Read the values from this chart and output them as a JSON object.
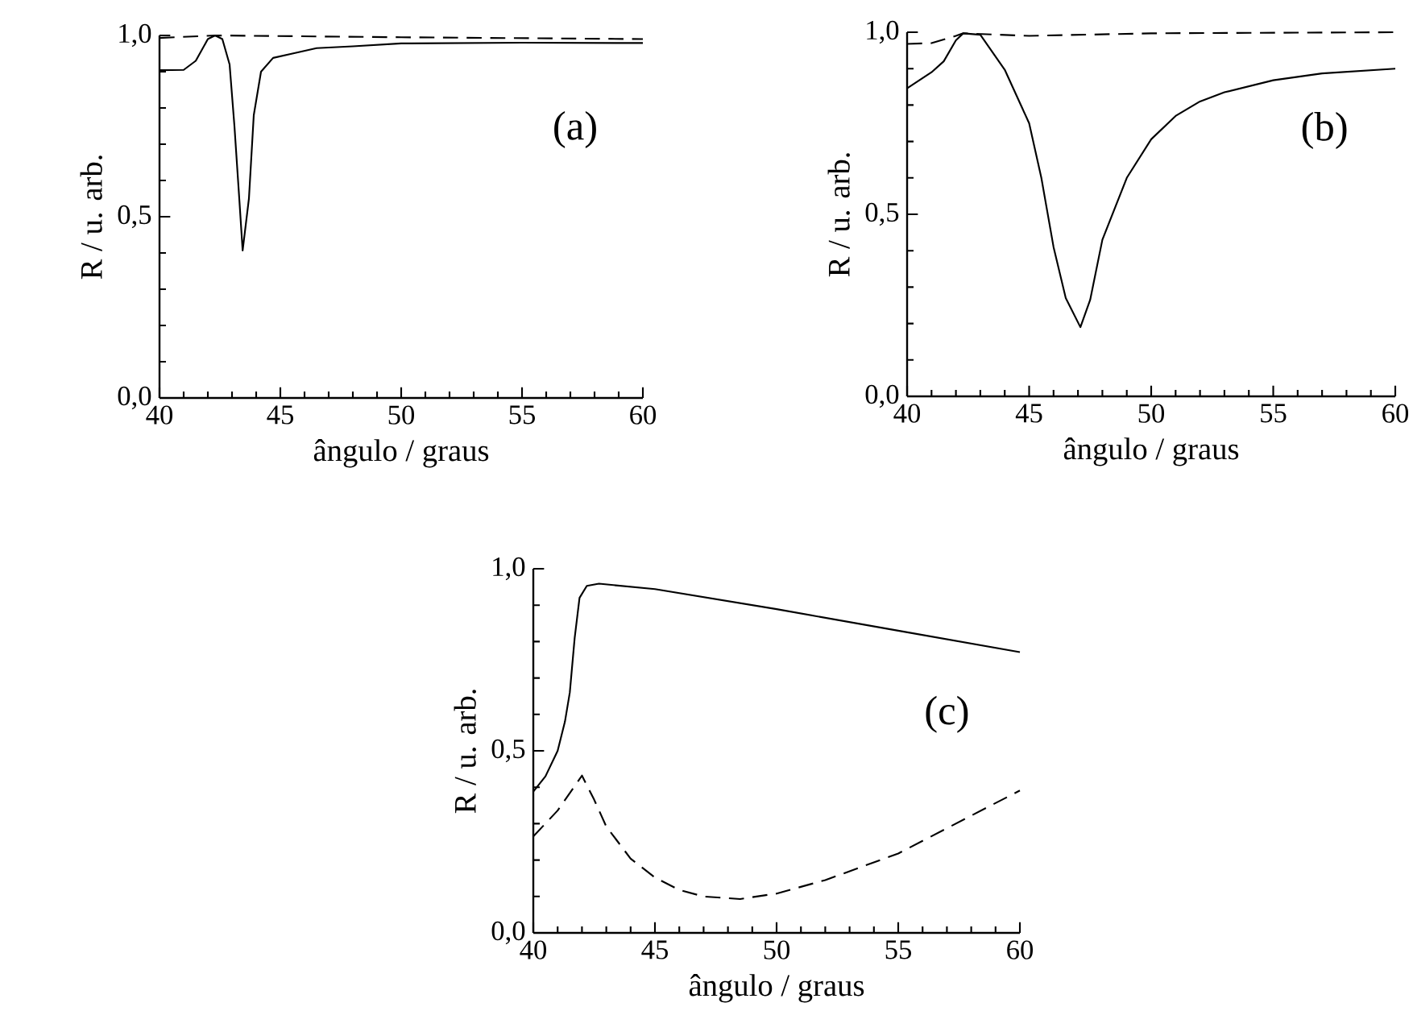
{
  "chart_data": [
    {
      "type": "line",
      "xlabel": "ângulo / graus",
      "ylabel": "R / u. arb.",
      "annotations": [
        "(a)"
      ],
      "xlim": [
        40,
        60
      ],
      "ylim": [
        0,
        1
      ],
      "xticks": [
        40,
        45,
        50,
        55,
        60
      ],
      "yticks": [
        {
          "value": 0,
          "label": "0,0"
        },
        {
          "value": 0.5,
          "label": "0,5"
        },
        {
          "value": 1,
          "label": "1,0"
        }
      ],
      "marker": "none",
      "series": [
        {
          "color": "#000000",
          "line_style": "solid",
          "x": [
            40,
            41,
            41.5,
            42,
            42.3,
            42.6,
            42.9,
            43.1,
            43.3,
            43.44,
            43.7,
            43.9,
            44.2,
            44.7,
            45.5,
            46.5,
            48,
            50,
            55,
            60
          ],
          "values": [
            0.904,
            0.905,
            0.93,
            0.99,
            1.0,
            0.99,
            0.92,
            0.75,
            0.55,
            0.407,
            0.55,
            0.78,
            0.9,
            0.938,
            0.95,
            0.965,
            0.97,
            0.978,
            0.98,
            0.979
          ]
        },
        {
          "color": "#000000",
          "line_style": "dashed",
          "x": [
            40,
            42.3,
            50,
            60
          ],
          "values": [
            0.993,
            1.0,
            0.995,
            0.99
          ]
        }
      ]
    },
    {
      "type": "line",
      "xlabel": "ângulo / graus",
      "ylabel": "R / u. arb.",
      "annotations": [
        "(b)"
      ],
      "xlim": [
        40,
        60
      ],
      "ylim": [
        0,
        1
      ],
      "xticks": [
        40,
        45,
        50,
        55,
        60
      ],
      "yticks": [
        {
          "value": 0,
          "label": "0,0"
        },
        {
          "value": 0.5,
          "label": "0,5"
        },
        {
          "value": 1,
          "label": "1,0"
        }
      ],
      "marker": "none",
      "series": [
        {
          "color": "#000000",
          "line_style": "solid",
          "x": [
            40,
            41,
            41.5,
            42,
            42.3,
            43,
            44,
            45,
            45.5,
            46,
            46.5,
            47.1,
            47.5,
            48,
            49,
            50,
            51,
            52,
            53,
            55,
            57,
            60
          ],
          "values": [
            0.846,
            0.89,
            0.92,
            0.978,
            0.997,
            0.993,
            0.897,
            0.75,
            0.6,
            0.41,
            0.27,
            0.19,
            0.265,
            0.43,
            0.6,
            0.706,
            0.77,
            0.81,
            0.835,
            0.868,
            0.887,
            0.9
          ]
        },
        {
          "color": "#000000",
          "line_style": "dashed",
          "x": [
            40,
            41,
            42,
            42.3,
            45,
            50,
            60
          ],
          "values": [
            0.968,
            0.97,
            0.99,
            0.997,
            0.99,
            0.997,
            1.0
          ]
        }
      ]
    },
    {
      "type": "line",
      "xlabel": "ângulo / graus",
      "ylabel": "R / u. arb.",
      "annotations": [
        "(c)"
      ],
      "xlim": [
        40,
        60
      ],
      "ylim": [
        0,
        1
      ],
      "xticks": [
        40,
        45,
        50,
        55,
        60
      ],
      "yticks": [
        {
          "value": 0,
          "label": "0,0"
        },
        {
          "value": 0.5,
          "label": "0,5"
        },
        {
          "value": 1,
          "label": "1,0"
        }
      ],
      "marker": "none",
      "series": [
        {
          "color": "#000000",
          "line_style": "solid",
          "x": [
            40,
            40.5,
            41,
            41.3,
            41.5,
            41.7,
            41.9,
            42.2,
            42.7,
            45,
            50,
            55,
            60
          ],
          "values": [
            0.388,
            0.43,
            0.5,
            0.58,
            0.66,
            0.81,
            0.92,
            0.953,
            0.959,
            0.944,
            0.889,
            0.83,
            0.771
          ]
        },
        {
          "color": "#000000",
          "line_style": "dashed",
          "x": [
            40,
            41,
            42,
            42.5,
            43,
            44,
            45,
            46,
            47,
            48.5,
            50,
            52,
            55,
            58,
            60
          ],
          "values": [
            0.265,
            0.336,
            0.432,
            0.366,
            0.292,
            0.204,
            0.152,
            0.118,
            0.1,
            0.093,
            0.108,
            0.145,
            0.218,
            0.322,
            0.391
          ]
        }
      ]
    }
  ]
}
